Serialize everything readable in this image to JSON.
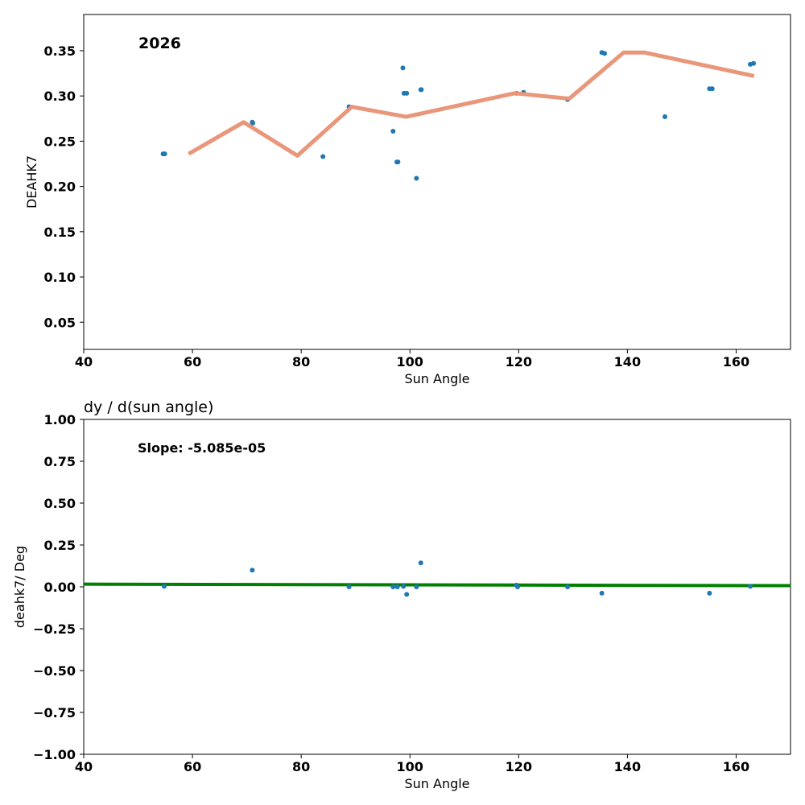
{
  "chart_data": [
    {
      "type": "scatter",
      "title": "",
      "annotation": "2026",
      "xlabel": "Sun Angle",
      "ylabel": "DEAHK7",
      "xlim": [
        40,
        170
      ],
      "ylim": [
        0.02,
        0.39
      ],
      "xticks": [
        40,
        60,
        80,
        100,
        120,
        140,
        160
      ],
      "yticks": [
        0.05,
        0.1,
        0.15,
        0.2,
        0.25,
        0.3,
        0.35
      ],
      "ytick_labels": [
        "0.05",
        "0.10",
        "0.15",
        "0.20",
        "0.25",
        "0.30",
        "0.35"
      ],
      "grid": false,
      "colors": {
        "points": "#1f77b4",
        "line": "#e9967a"
      },
      "points": [
        {
          "x": 54.6,
          "y": 0.236
        },
        {
          "x": 54.9,
          "y": 0.236
        },
        {
          "x": 71.0,
          "y": 0.271
        },
        {
          "x": 71.1,
          "y": 0.27
        },
        {
          "x": 84.0,
          "y": 0.233
        },
        {
          "x": 88.8,
          "y": 0.288
        },
        {
          "x": 96.9,
          "y": 0.261
        },
        {
          "x": 97.6,
          "y": 0.227
        },
        {
          "x": 97.8,
          "y": 0.227
        },
        {
          "x": 98.7,
          "y": 0.331
        },
        {
          "x": 98.9,
          "y": 0.303
        },
        {
          "x": 99.4,
          "y": 0.303
        },
        {
          "x": 101.2,
          "y": 0.209
        },
        {
          "x": 102.0,
          "y": 0.307
        },
        {
          "x": 102.1,
          "y": 0.307
        },
        {
          "x": 119.6,
          "y": 0.303
        },
        {
          "x": 120.9,
          "y": 0.304
        },
        {
          "x": 129.0,
          "y": 0.296
        },
        {
          "x": 135.3,
          "y": 0.348
        },
        {
          "x": 135.8,
          "y": 0.347
        },
        {
          "x": 146.9,
          "y": 0.277
        },
        {
          "x": 155.1,
          "y": 0.308
        },
        {
          "x": 155.6,
          "y": 0.308
        },
        {
          "x": 162.6,
          "y": 0.335
        },
        {
          "x": 163.2,
          "y": 0.336
        }
      ],
      "line": {
        "x": [
          59.3,
          69.4,
          79.3,
          89.3,
          99.3,
          119.3,
          129.3,
          139.3,
          143.1,
          163.3
        ],
        "y": [
          0.236,
          0.271,
          0.234,
          0.288,
          0.277,
          0.303,
          0.297,
          0.348,
          0.348,
          0.322
        ]
      }
    },
    {
      "type": "scatter",
      "title": "dy / d(sun angle)",
      "annotation": "Slope: -5.085e-05",
      "xlabel": "Sun Angle",
      "ylabel": "deahk7/ Deg",
      "xlim": [
        40,
        170
      ],
      "ylim": [
        -1.0,
        1.0
      ],
      "xticks": [
        40,
        60,
        80,
        100,
        120,
        140,
        160
      ],
      "yticks": [
        -1.0,
        -0.75,
        -0.5,
        -0.25,
        0.0,
        0.25,
        0.5,
        0.75,
        1.0
      ],
      "ytick_labels": [
        "−1.00",
        "−0.75",
        "−0.50",
        "−0.25",
        "0.00",
        "0.25",
        "0.50",
        "0.75",
        "1.00"
      ],
      "grid": false,
      "colors": {
        "points": "#1f77b4",
        "line": "#008000"
      },
      "points": [
        {
          "x": 54.8,
          "y": 0.003
        },
        {
          "x": 71.0,
          "y": 0.1
        },
        {
          "x": 88.8,
          "y": 0.0
        },
        {
          "x": 96.9,
          "y": 0.0
        },
        {
          "x": 97.7,
          "y": 0.0
        },
        {
          "x": 98.8,
          "y": 0.003
        },
        {
          "x": 99.4,
          "y": -0.045
        },
        {
          "x": 101.2,
          "y": 0.0
        },
        {
          "x": 102.0,
          "y": 0.143
        },
        {
          "x": 119.6,
          "y": 0.01
        },
        {
          "x": 119.8,
          "y": 0.0
        },
        {
          "x": 129.0,
          "y": 0.0
        },
        {
          "x": 135.3,
          "y": -0.038
        },
        {
          "x": 155.1,
          "y": -0.038
        },
        {
          "x": 162.6,
          "y": 0.003
        }
      ],
      "line": {
        "x": [
          40,
          170
        ],
        "y": [
          0.016,
          0.007
        ]
      }
    }
  ]
}
